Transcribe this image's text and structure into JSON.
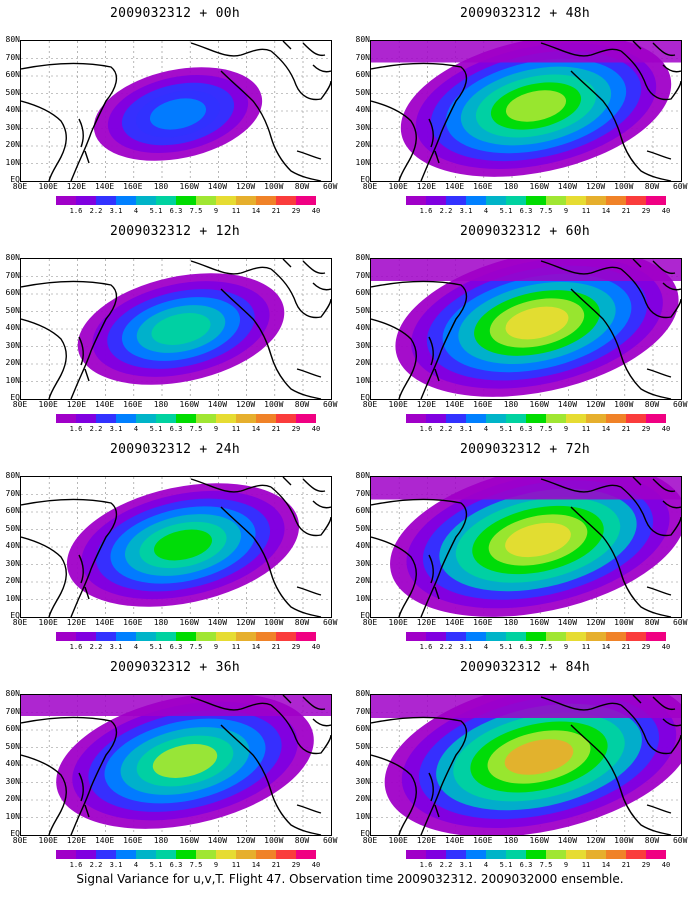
{
  "panels": [
    {
      "title": "2009032312 + 00h",
      "level": 0.35
    },
    {
      "title": "2009032312 + 48h",
      "level": 0.75
    },
    {
      "title": "2009032312 + 12h",
      "level": 0.5
    },
    {
      "title": "2009032312 + 60h",
      "level": 0.8
    },
    {
      "title": "2009032312 + 24h",
      "level": 0.6
    },
    {
      "title": "2009032312 + 72h",
      "level": 0.85
    },
    {
      "title": "2009032312 + 36h",
      "level": 0.7
    },
    {
      "title": "2009032312 + 84h",
      "level": 0.9
    }
  ],
  "lat_labels": [
    "80N",
    "70N",
    "60N",
    "50N",
    "40N",
    "30N",
    "20N",
    "10N",
    "EQ"
  ],
  "lon_labels": [
    "80E",
    "100E",
    "120E",
    "140E",
    "160E",
    "180",
    "160W",
    "140W",
    "120W",
    "100W",
    "80W",
    "60W"
  ],
  "colorbar": {
    "labels": [
      "1.6",
      "2.2",
      "3.1",
      "4",
      "5.1",
      "6.3",
      "7.5",
      "9",
      "11",
      "14",
      "21",
      "29",
      "40"
    ],
    "colors": [
      "#a000c8",
      "#8000e0",
      "#3232ff",
      "#0080ff",
      "#00b4c8",
      "#00d2a0",
      "#00dc00",
      "#a0e632",
      "#e6dc32",
      "#e6af2d",
      "#f08228",
      "#fa3c3c",
      "#f00082"
    ]
  },
  "footer": "Signal Variance for u,v,T. Flight 47. Observation time 2009032312. 2009032000 ensemble."
}
